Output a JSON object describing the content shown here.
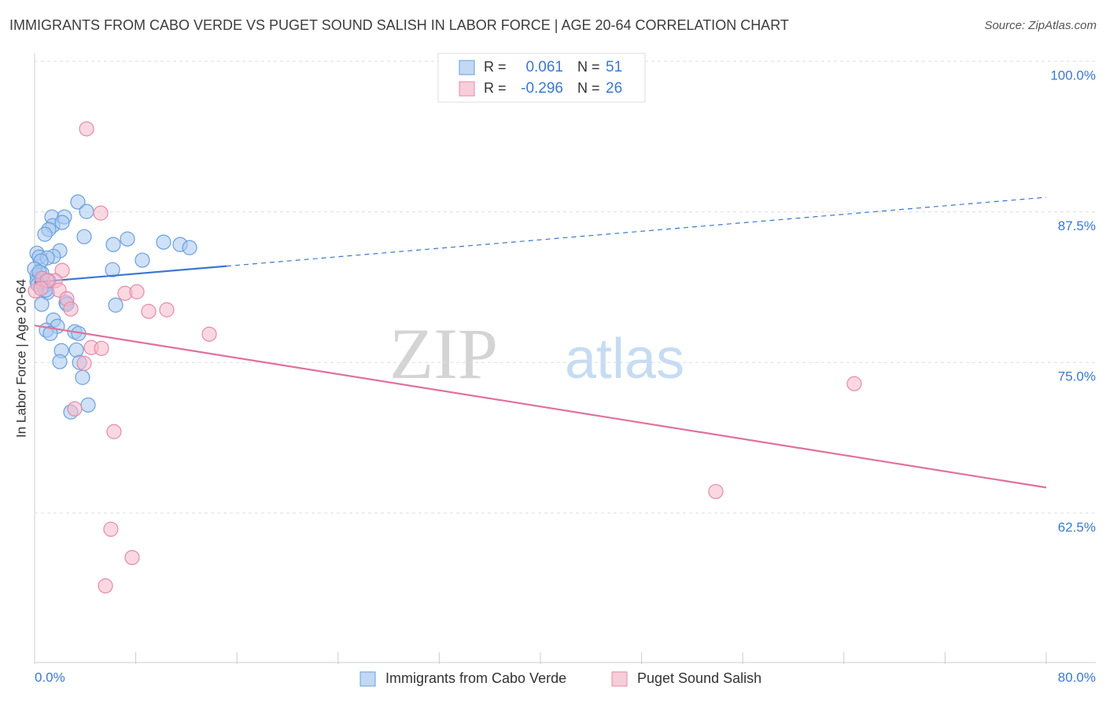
{
  "chart_data": {
    "type": "scatter",
    "title": "IMMIGRANTS FROM CABO VERDE VS PUGET SOUND SALISH IN LABOR FORCE | AGE 20-64 CORRELATION CHART",
    "source": "Source: ZipAtlas.com",
    "y_label": "In Labor Force | Age 20-64",
    "watermark": [
      "ZIP",
      "atlas"
    ],
    "r_label": "R =",
    "n_label": "N =",
    "xlim": [
      0,
      80
    ],
    "ylim": [
      50.1,
      100.65
    ],
    "xticks": [
      0,
      8,
      16,
      24,
      32,
      40,
      48,
      56,
      64,
      72,
      80
    ],
    "xtick_labels": [
      {
        "value": 0,
        "label": "0.0%"
      },
      {
        "value": 80,
        "label": "80.0%"
      }
    ],
    "yticks": [
      {
        "value": 100,
        "label": "100.0%"
      },
      {
        "value": 87.5,
        "label": "87.5%"
      },
      {
        "value": 75,
        "label": "75.0%"
      },
      {
        "value": 62.5,
        "label": "62.5%"
      }
    ],
    "grid": true,
    "series": [
      {
        "name": "Immigrants from Cabo Verde",
        "color": "#6a9fdd",
        "fill": "#a8c8f0",
        "line_color": "#3a78d0",
        "r": 0.061,
        "n": 51,
        "trend": {
          "x": [
            0,
            80
          ],
          "y": [
            81.66,
            88.71
          ],
          "solid_until": 15.18
        },
        "x": [
          3.42,
          4.11,
          1.37,
          2.36,
          1.43,
          2.18,
          1.12,
          0.81,
          3.92,
          6.22,
          7.34,
          10.2,
          11.51,
          12.26,
          1.99,
          0.19,
          0.37,
          1.49,
          1.0,
          8.52,
          6.16,
          0.56,
          0.19,
          0.5,
          0.19,
          0.68,
          0.75,
          1.0,
          6.41,
          0.56,
          2.49,
          1.49,
          1.8,
          3.17,
          3.48,
          0.93,
          1.24,
          2.12,
          1.99,
          3.3,
          3.55,
          3.79,
          4.23,
          2.86,
          0.5,
          0.0,
          0.25,
          0.87,
          0.37,
          1.12,
          2.55
        ],
        "values": [
          88.32,
          87.53,
          87.08,
          87.08,
          86.36,
          86.62,
          86.03,
          85.64,
          85.44,
          84.79,
          85.25,
          84.99,
          84.79,
          84.53,
          84.27,
          84.07,
          83.75,
          83.81,
          83.68,
          83.49,
          82.7,
          82.44,
          82.25,
          81.98,
          81.72,
          81.59,
          81.33,
          80.81,
          79.76,
          79.83,
          79.96,
          78.52,
          78.0,
          77.55,
          77.41,
          77.68,
          77.41,
          75.98,
          75.07,
          76.04,
          75.0,
          73.76,
          71.47,
          70.89,
          83.42,
          82.77,
          81.46,
          81.01,
          82.51,
          81.79,
          79.83
        ]
      },
      {
        "name": "Puget Sound Salish",
        "color": "#e58aa8",
        "fill": "#f5b8ca",
        "line_color": "#e0719a",
        "r": -0.296,
        "n": 26,
        "trend": {
          "x": [
            0,
            80
          ],
          "y": [
            78.07,
            64.62
          ],
          "solid_until": 80
        },
        "x": [
          4.11,
          5.23,
          2.18,
          0.62,
          1.62,
          0.06,
          1.93,
          7.15,
          8.09,
          2.55,
          2.86,
          9.02,
          10.45,
          13.81,
          3.92,
          4.48,
          5.29,
          3.17,
          6.28,
          64.82,
          53.87,
          6.03,
          7.71,
          5.6,
          1.0,
          0.5
        ],
        "values": [
          94.39,
          87.4,
          82.64,
          81.98,
          81.79,
          80.94,
          81.01,
          80.74,
          80.87,
          80.29,
          79.44,
          79.24,
          79.37,
          77.35,
          74.93,
          76.24,
          76.17,
          71.15,
          69.26,
          73.24,
          64.29,
          61.16,
          58.81,
          56.46,
          81.79,
          81.14
        ]
      }
    ]
  }
}
